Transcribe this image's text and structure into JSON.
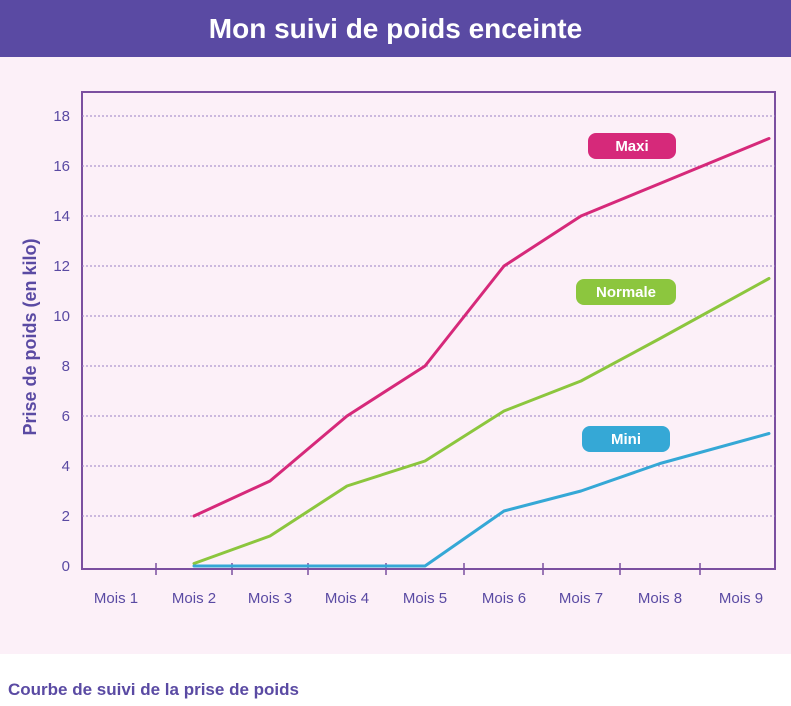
{
  "header": {
    "title": "Mon suivi de poids enceinte"
  },
  "caption": "Courbe de suivi de la prise de poids",
  "colors": {
    "header_bg": "#5a4aa3",
    "plot_border": "#7b4fa0",
    "axis_text": "#5a4aa3",
    "maxi": "#d6297a",
    "normale": "#8cc63e",
    "mini": "#35a8d6"
  },
  "chart_data": {
    "type": "line",
    "title": "",
    "xlabel": "",
    "ylabel": "Prise de poids (en kilo)",
    "categories": [
      "Mois 1",
      "Mois 2",
      "Mois 3",
      "Mois 4",
      "Mois 5",
      "Mois 6",
      "Mois 7",
      "Mois 8",
      "Mois 9"
    ],
    "yticks": [
      "0",
      "2",
      "4",
      "6",
      "8",
      "10",
      "12",
      "14",
      "16",
      "18"
    ],
    "ylim": [
      0,
      18
    ],
    "grid": true,
    "series": [
      {
        "name": "Maxi",
        "color": "#d6297a",
        "values": [
          null,
          2,
          3.4,
          6,
          8,
          12,
          14,
          15.3,
          17.1
        ]
      },
      {
        "name": "Normale",
        "color": "#8cc63e",
        "values": [
          null,
          0.1,
          1.2,
          3.2,
          4.2,
          6.2,
          7.4,
          9.1,
          11.5
        ]
      },
      {
        "name": "Mini",
        "color": "#35a8d6",
        "values": [
          null,
          0,
          0,
          0,
          0,
          2.2,
          3,
          4.1,
          5.3
        ]
      }
    ]
  }
}
